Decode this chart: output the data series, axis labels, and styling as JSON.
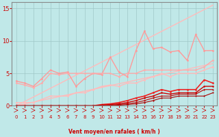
{
  "title": "",
  "xlabel": "Vent moyen/en rafales ( km/h )",
  "bg_color": "#c0e8e8",
  "grid_color": "#a0c8c8",
  "xlim": [
    -0.5,
    23.5
  ],
  "ylim": [
    0,
    16
  ],
  "yticks": [
    0,
    5,
    10,
    15
  ],
  "xticks": [
    0,
    1,
    2,
    3,
    4,
    5,
    6,
    7,
    8,
    9,
    10,
    11,
    12,
    13,
    14,
    15,
    16,
    17,
    18,
    19,
    20,
    21,
    22,
    23
  ],
  "lines": [
    {
      "name": "triangle_upper",
      "color": "#ffbbbb",
      "linewidth": 1.0,
      "marker": null,
      "x": [
        0,
        23
      ],
      "y": [
        0,
        15.5
      ]
    },
    {
      "name": "triangle_lower",
      "color": "#ffbbbb",
      "linewidth": 1.0,
      "marker": null,
      "x": [
        0,
        23
      ],
      "y": [
        0,
        6.5
      ]
    },
    {
      "name": "line_jagged_high",
      "color": "#ff9999",
      "linewidth": 1.0,
      "marker": "o",
      "markersize": 2.0,
      "x": [
        0,
        1,
        2,
        3,
        4,
        5,
        6,
        7,
        8,
        9,
        10,
        11,
        12,
        13,
        14,
        15,
        16,
        17,
        18,
        19,
        20,
        21,
        22,
        23
      ],
      "y": [
        3.8,
        3.5,
        3.0,
        4.2,
        5.5,
        5.0,
        5.2,
        3.0,
        4.2,
        5.0,
        4.8,
        7.5,
        5.2,
        4.5,
        8.5,
        11.5,
        8.8,
        9.0,
        8.3,
        8.5,
        7.0,
        11.0,
        8.5,
        8.5
      ]
    },
    {
      "name": "line_medium_pink",
      "color": "#ffaaaa",
      "linewidth": 1.0,
      "marker": "o",
      "markersize": 2.0,
      "x": [
        0,
        1,
        2,
        3,
        4,
        5,
        6,
        7,
        8,
        9,
        10,
        11,
        12,
        13,
        14,
        15,
        16,
        17,
        18,
        19,
        20,
        21,
        22,
        23
      ],
      "y": [
        3.5,
        3.2,
        2.8,
        3.5,
        5.0,
        4.8,
        5.0,
        5.0,
        5.0,
        5.0,
        5.0,
        5.0,
        4.5,
        5.0,
        5.0,
        5.5,
        5.5,
        5.5,
        5.5,
        5.5,
        5.5,
        5.5,
        6.0,
        7.0
      ]
    },
    {
      "name": "line_lower_pink",
      "color": "#ffbbbb",
      "linewidth": 1.0,
      "marker": "o",
      "markersize": 2.0,
      "x": [
        0,
        1,
        2,
        3,
        4,
        5,
        6,
        7,
        8,
        9,
        10,
        11,
        12,
        13,
        14,
        15,
        16,
        17,
        18,
        19,
        20,
        21,
        22,
        23
      ],
      "y": [
        0.5,
        0.5,
        0.5,
        1.0,
        1.5,
        1.5,
        1.5,
        2.0,
        2.0,
        2.5,
        3.0,
        3.2,
        3.0,
        3.5,
        3.5,
        4.0,
        4.5,
        5.0,
        4.5,
        5.0,
        5.0,
        5.0,
        5.5,
        6.0
      ]
    },
    {
      "name": "line_red_top",
      "color": "#ee2222",
      "linewidth": 1.2,
      "marker": "o",
      "markersize": 2.0,
      "x": [
        0,
        1,
        2,
        3,
        4,
        5,
        6,
        7,
        8,
        9,
        10,
        11,
        12,
        13,
        14,
        15,
        16,
        17,
        18,
        19,
        20,
        21,
        22,
        23
      ],
      "y": [
        0,
        0,
        0,
        0,
        0,
        0,
        0,
        0,
        0,
        0,
        0.2,
        0.3,
        0.5,
        0.8,
        1.2,
        1.5,
        2.0,
        2.5,
        2.2,
        2.5,
        2.5,
        2.5,
        4.0,
        3.5
      ]
    },
    {
      "name": "line_red_mid1",
      "color": "#cc0000",
      "linewidth": 1.0,
      "marker": "o",
      "markersize": 1.8,
      "x": [
        0,
        1,
        2,
        3,
        4,
        5,
        6,
        7,
        8,
        9,
        10,
        11,
        12,
        13,
        14,
        15,
        16,
        17,
        18,
        19,
        20,
        21,
        22,
        23
      ],
      "y": [
        0,
        0,
        0,
        0,
        0,
        0,
        0,
        0,
        0,
        0,
        0.1,
        0.2,
        0.3,
        0.5,
        0.8,
        1.2,
        1.5,
        2.0,
        1.8,
        2.0,
        2.0,
        2.0,
        3.0,
        3.0
      ]
    },
    {
      "name": "line_red_mid2",
      "color": "#bb0000",
      "linewidth": 0.8,
      "marker": "o",
      "markersize": 1.5,
      "x": [
        0,
        1,
        2,
        3,
        4,
        5,
        6,
        7,
        8,
        9,
        10,
        11,
        12,
        13,
        14,
        15,
        16,
        17,
        18,
        19,
        20,
        21,
        22,
        23
      ],
      "y": [
        0,
        0,
        0,
        0,
        0,
        0,
        0,
        0,
        0,
        0,
        0,
        0.1,
        0.2,
        0.3,
        0.5,
        0.8,
        1.2,
        1.5,
        1.5,
        1.8,
        1.8,
        1.8,
        2.5,
        2.5
      ]
    },
    {
      "name": "line_red_low",
      "color": "#aa0000",
      "linewidth": 0.8,
      "marker": "o",
      "markersize": 1.5,
      "x": [
        0,
        1,
        2,
        3,
        4,
        5,
        6,
        7,
        8,
        9,
        10,
        11,
        12,
        13,
        14,
        15,
        16,
        17,
        18,
        19,
        20,
        21,
        22,
        23
      ],
      "y": [
        0,
        0,
        0,
        0,
        0,
        0,
        0,
        0,
        0,
        0,
        0,
        0,
        0.1,
        0.2,
        0.3,
        0.5,
        0.8,
        1.2,
        1.2,
        1.5,
        1.5,
        1.5,
        1.5,
        2.0
      ]
    }
  ]
}
